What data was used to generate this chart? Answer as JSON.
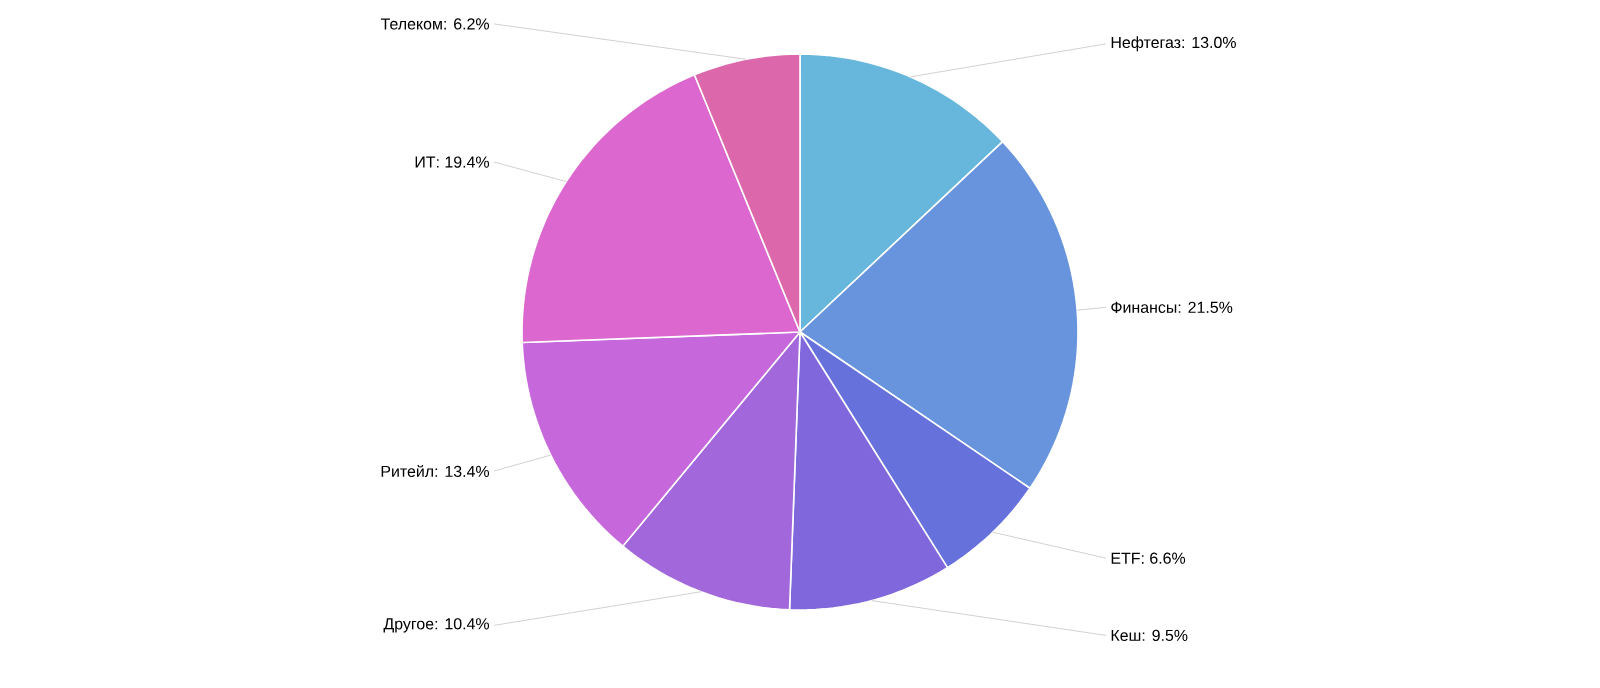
{
  "chart_data": {
    "type": "pie",
    "categories": [
      "Нефтегаз: 13.0%",
      "Финансы: 21.5%",
      "ETF: 6.6%",
      "Кеш: 9.5%",
      "Другое: 10.4%",
      "Ритейл: 13.4%",
      "ИТ: 19.4%",
      "Телеком: 6.2%"
    ],
    "values": [
      13.0,
      21.5,
      6.6,
      9.5,
      10.4,
      13.4,
      19.4,
      6.2
    ],
    "colors": [
      "#67b7dc",
      "#6794dc",
      "#6771dc",
      "#8067dc",
      "#a367dc",
      "#c767dc",
      "#dc67ce",
      "#dc67ab"
    ]
  }
}
